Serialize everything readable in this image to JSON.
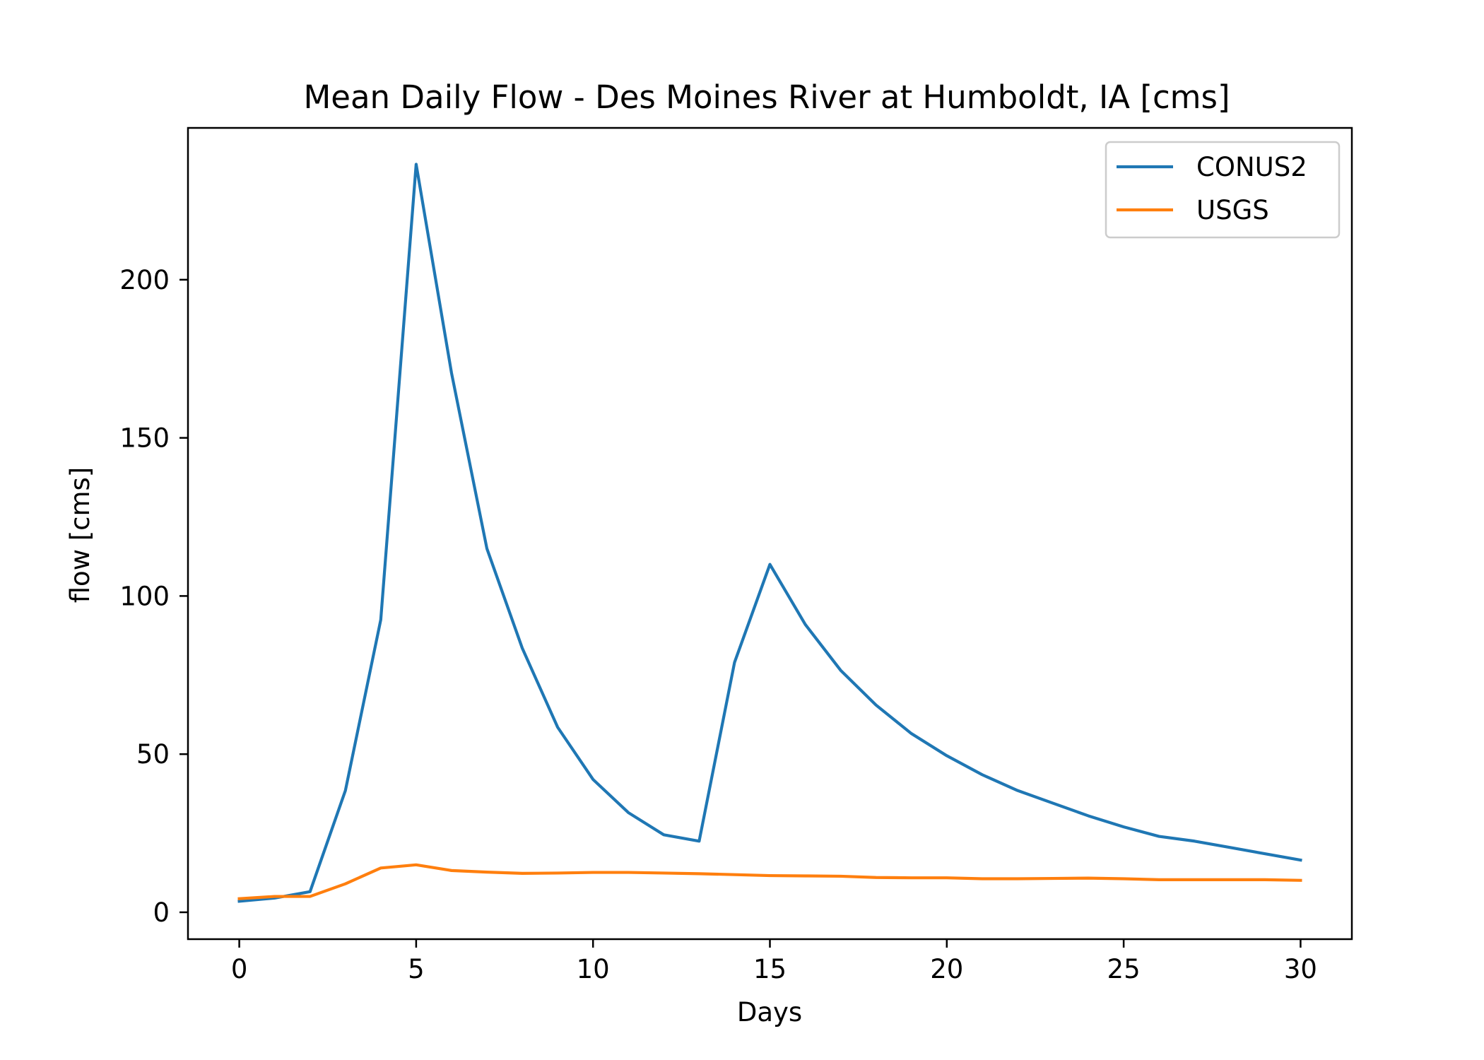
{
  "chart_data": {
    "type": "line",
    "title": "Mean Daily Flow - Des Moines River at Humboldt, IA [cms]",
    "xlabel": "Days",
    "ylabel": "flow [cms]",
    "xlim": [
      -1.45,
      31.45
    ],
    "ylim": [
      -8.5,
      248
    ],
    "xticks": [
      0,
      5,
      10,
      15,
      20,
      25,
      30
    ],
    "yticks": [
      0,
      50,
      100,
      150,
      200
    ],
    "x": [
      0,
      1,
      2,
      3,
      4,
      5,
      6,
      7,
      8,
      9,
      10,
      11,
      12,
      13,
      14,
      15,
      16,
      17,
      18,
      19,
      20,
      21,
      22,
      23,
      24,
      25,
      26,
      27,
      28,
      29,
      30
    ],
    "series": [
      {
        "name": "CONUS2",
        "color": "#1f77b4",
        "values": [
          3.5,
          4.5,
          6.5,
          38.5,
          92.5,
          236.5,
          170.5,
          115,
          83.5,
          58.5,
          42,
          31.5,
          24.5,
          22.5,
          79,
          110,
          91,
          76.5,
          65.5,
          56.5,
          49.5,
          43.5,
          38.5,
          34.5,
          30.5,
          27,
          24,
          22.5,
          20.5,
          18.5,
          16.5
        ]
      },
      {
        "name": "USGS",
        "color": "#ff7f0e",
        "values": [
          4.3,
          5,
          5,
          9,
          14,
          15,
          13.2,
          12.7,
          12.3,
          12.4,
          12.6,
          12.6,
          12.4,
          12.2,
          11.9,
          11.6,
          11.5,
          11.4,
          11,
          10.9,
          10.9,
          10.6,
          10.6,
          10.7,
          10.8,
          10.6,
          10.3,
          10.3,
          10.3,
          10.3,
          10.1
        ]
      }
    ],
    "legend_position": "upper right",
    "grid": false
  }
}
